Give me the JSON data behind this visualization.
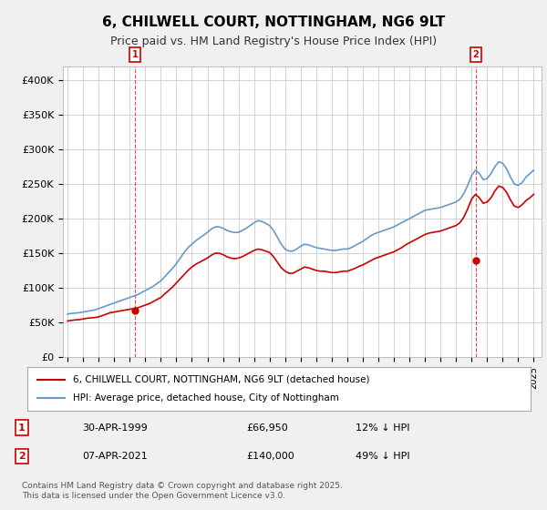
{
  "title": "6, CHILWELL COURT, NOTTINGHAM, NG6 9LT",
  "subtitle": "Price paid vs. HM Land Registry's House Price Index (HPI)",
  "bg_color": "#f0f0f0",
  "plot_bg_color": "#ffffff",
  "grid_color": "#cccccc",
  "red_color": "#cc0000",
  "blue_color": "#6699cc",
  "ylim": [
    0,
    420000
  ],
  "yticks": [
    0,
    50000,
    100000,
    150000,
    200000,
    250000,
    300000,
    350000,
    400000
  ],
  "ylabel_fmt": [
    "£0",
    "£50K",
    "£100K",
    "£150K",
    "£200K",
    "£250K",
    "£300K",
    "£350K",
    "£400K"
  ],
  "legend_line1": "6, CHILWELL COURT, NOTTINGHAM, NG6 9LT (detached house)",
  "legend_line2": "HPI: Average price, detached house, City of Nottingham",
  "annotation1_label": "1",
  "annotation1_date": "30-APR-1999",
  "annotation1_price": "£66,950",
  "annotation1_hpi": "12% ↓ HPI",
  "annotation2_label": "2",
  "annotation2_date": "07-APR-2021",
  "annotation2_price": "£140,000",
  "annotation2_hpi": "49% ↓ HPI",
  "footer": "Contains HM Land Registry data © Crown copyright and database right 2025.\nThis data is licensed under the Open Government Licence v3.0.",
  "sale1_year": 1999.33,
  "sale1_price": 66950,
  "sale2_year": 2021.27,
  "sale2_price": 140000,
  "hpi_years": [
    1995.0,
    1995.25,
    1995.5,
    1995.75,
    1996.0,
    1996.25,
    1996.5,
    1996.75,
    1997.0,
    1997.25,
    1997.5,
    1997.75,
    1998.0,
    1998.25,
    1998.5,
    1998.75,
    1999.0,
    1999.25,
    1999.5,
    1999.75,
    2000.0,
    2000.25,
    2000.5,
    2000.75,
    2001.0,
    2001.25,
    2001.5,
    2001.75,
    2002.0,
    2002.25,
    2002.5,
    2002.75,
    2003.0,
    2003.25,
    2003.5,
    2003.75,
    2004.0,
    2004.25,
    2004.5,
    2004.75,
    2005.0,
    2005.25,
    2005.5,
    2005.75,
    2006.0,
    2006.25,
    2006.5,
    2006.75,
    2007.0,
    2007.25,
    2007.5,
    2007.75,
    2008.0,
    2008.25,
    2008.5,
    2008.75,
    2009.0,
    2009.25,
    2009.5,
    2009.75,
    2010.0,
    2010.25,
    2010.5,
    2010.75,
    2011.0,
    2011.25,
    2011.5,
    2011.75,
    2012.0,
    2012.25,
    2012.5,
    2012.75,
    2013.0,
    2013.25,
    2013.5,
    2013.75,
    2014.0,
    2014.25,
    2014.5,
    2014.75,
    2015.0,
    2015.25,
    2015.5,
    2015.75,
    2016.0,
    2016.25,
    2016.5,
    2016.75,
    2017.0,
    2017.25,
    2017.5,
    2017.75,
    2018.0,
    2018.25,
    2018.5,
    2018.75,
    2019.0,
    2019.25,
    2019.5,
    2019.75,
    2020.0,
    2020.25,
    2020.5,
    2020.75,
    2021.0,
    2021.25,
    2021.5,
    2021.75,
    2022.0,
    2022.25,
    2022.5,
    2022.75,
    2023.0,
    2023.25,
    2023.5,
    2023.75,
    2024.0,
    2024.25,
    2024.5,
    2024.75,
    2025.0
  ],
  "hpi_values": [
    62000,
    63000,
    63500,
    64000,
    65000,
    66000,
    67000,
    68000,
    70000,
    72000,
    74000,
    76000,
    78000,
    80000,
    82000,
    84000,
    86000,
    88000,
    90000,
    93000,
    96000,
    99000,
    102000,
    106000,
    110000,
    116000,
    122000,
    128000,
    135000,
    143000,
    151000,
    158000,
    163000,
    168000,
    172000,
    176000,
    180000,
    185000,
    188000,
    188000,
    186000,
    183000,
    181000,
    180000,
    180000,
    183000,
    186000,
    190000,
    194000,
    197000,
    196000,
    193000,
    190000,
    183000,
    173000,
    163000,
    156000,
    153000,
    153000,
    156000,
    160000,
    163000,
    162000,
    160000,
    158000,
    157000,
    156000,
    155000,
    154000,
    154000,
    155000,
    156000,
    156000,
    158000,
    161000,
    164000,
    167000,
    171000,
    175000,
    178000,
    180000,
    182000,
    184000,
    186000,
    188000,
    191000,
    194000,
    197000,
    200000,
    203000,
    206000,
    209000,
    212000,
    213000,
    214000,
    215000,
    216000,
    218000,
    220000,
    222000,
    224000,
    228000,
    236000,
    248000,
    262000,
    270000,
    265000,
    256000,
    258000,
    265000,
    275000,
    282000,
    280000,
    272000,
    260000,
    250000,
    248000,
    252000,
    260000,
    265000,
    270000
  ],
  "red_years": [
    1995.0,
    1995.25,
    1995.5,
    1995.75,
    1996.0,
    1996.25,
    1996.5,
    1996.75,
    1997.0,
    1997.25,
    1997.5,
    1997.75,
    1998.0,
    1998.25,
    1998.5,
    1998.75,
    1999.0,
    1999.25,
    1999.5,
    1999.75,
    2000.0,
    2000.25,
    2000.5,
    2000.75,
    2001.0,
    2001.25,
    2001.5,
    2001.75,
    2002.0,
    2002.25,
    2002.5,
    2002.75,
    2003.0,
    2003.25,
    2003.5,
    2003.75,
    2004.0,
    2004.25,
    2004.5,
    2004.75,
    2005.0,
    2005.25,
    2005.5,
    2005.75,
    2006.0,
    2006.25,
    2006.5,
    2006.75,
    2007.0,
    2007.25,
    2007.5,
    2007.75,
    2008.0,
    2008.25,
    2008.5,
    2008.75,
    2009.0,
    2009.25,
    2009.5,
    2009.75,
    2010.0,
    2010.25,
    2010.5,
    2010.75,
    2011.0,
    2011.25,
    2011.5,
    2011.75,
    2012.0,
    2012.25,
    2012.5,
    2012.75,
    2013.0,
    2013.25,
    2013.5,
    2013.75,
    2014.0,
    2014.25,
    2014.5,
    2014.75,
    2015.0,
    2015.25,
    2015.5,
    2015.75,
    2016.0,
    2016.25,
    2016.5,
    2016.75,
    2017.0,
    2017.25,
    2017.5,
    2017.75,
    2018.0,
    2018.25,
    2018.5,
    2018.75,
    2019.0,
    2019.25,
    2019.5,
    2019.75,
    2020.0,
    2020.25,
    2020.5,
    2020.75,
    2021.0,
    2021.25,
    2021.5,
    2021.75,
    2022.0,
    2022.25,
    2022.5,
    2022.75,
    2023.0,
    2023.25,
    2023.5,
    2023.75,
    2024.0,
    2024.25,
    2024.5,
    2024.75,
    2025.0
  ],
  "red_values": [
    52000,
    53000,
    53500,
    54000,
    55000,
    56000,
    56500,
    57000,
    58000,
    60000,
    62000,
    64000,
    65000,
    66000,
    67000,
    68000,
    69000,
    70000,
    71000,
    73000,
    75000,
    77000,
    80000,
    83000,
    86000,
    91000,
    96000,
    101000,
    107000,
    113000,
    119000,
    125000,
    130000,
    134000,
    137000,
    140000,
    143000,
    147000,
    150000,
    150000,
    148000,
    145000,
    143000,
    142000,
    143000,
    145000,
    148000,
    151000,
    154000,
    156000,
    155000,
    153000,
    151000,
    145000,
    137000,
    129000,
    124000,
    121000,
    121000,
    124000,
    127000,
    130000,
    129000,
    127000,
    125000,
    124000,
    124000,
    123000,
    122000,
    122000,
    123000,
    124000,
    124000,
    126000,
    128000,
    131000,
    133000,
    136000,
    139000,
    142000,
    144000,
    146000,
    148000,
    150000,
    152000,
    155000,
    158000,
    162000,
    165000,
    168000,
    171000,
    174000,
    177000,
    179000,
    180000,
    181000,
    182000,
    184000,
    186000,
    188000,
    190000,
    194000,
    202000,
    214000,
    228000,
    235000,
    230000,
    222000,
    224000,
    230000,
    240000,
    247000,
    245000,
    238000,
    227000,
    218000,
    216000,
    220000,
    226000,
    230000,
    235000
  ]
}
